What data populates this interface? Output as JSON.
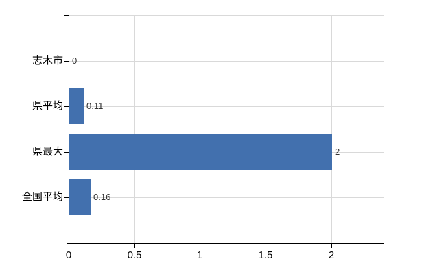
{
  "chart_data": {
    "type": "bar",
    "orientation": "horizontal",
    "title": "",
    "categories": [
      "志木市",
      "県平均",
      "県最大",
      "全国平均"
    ],
    "values": [
      0,
      0.11,
      2,
      0.16
    ],
    "data_labels": [
      "0",
      "0.11",
      "2",
      "0.16"
    ],
    "x_ticks": [
      0,
      0.5,
      1,
      1.5,
      2
    ],
    "x_tick_labels": [
      "0",
      "0.5",
      "1",
      "1.5",
      "2"
    ],
    "xlim": [
      0,
      2.4
    ],
    "grid": true,
    "legend": "none",
    "colors": {
      "bar": "#4270ae",
      "grid": "#d9d9d9",
      "axis": "#000000",
      "category_label": "#000000",
      "tick_label": "#000000",
      "data_label": "#333333"
    }
  }
}
